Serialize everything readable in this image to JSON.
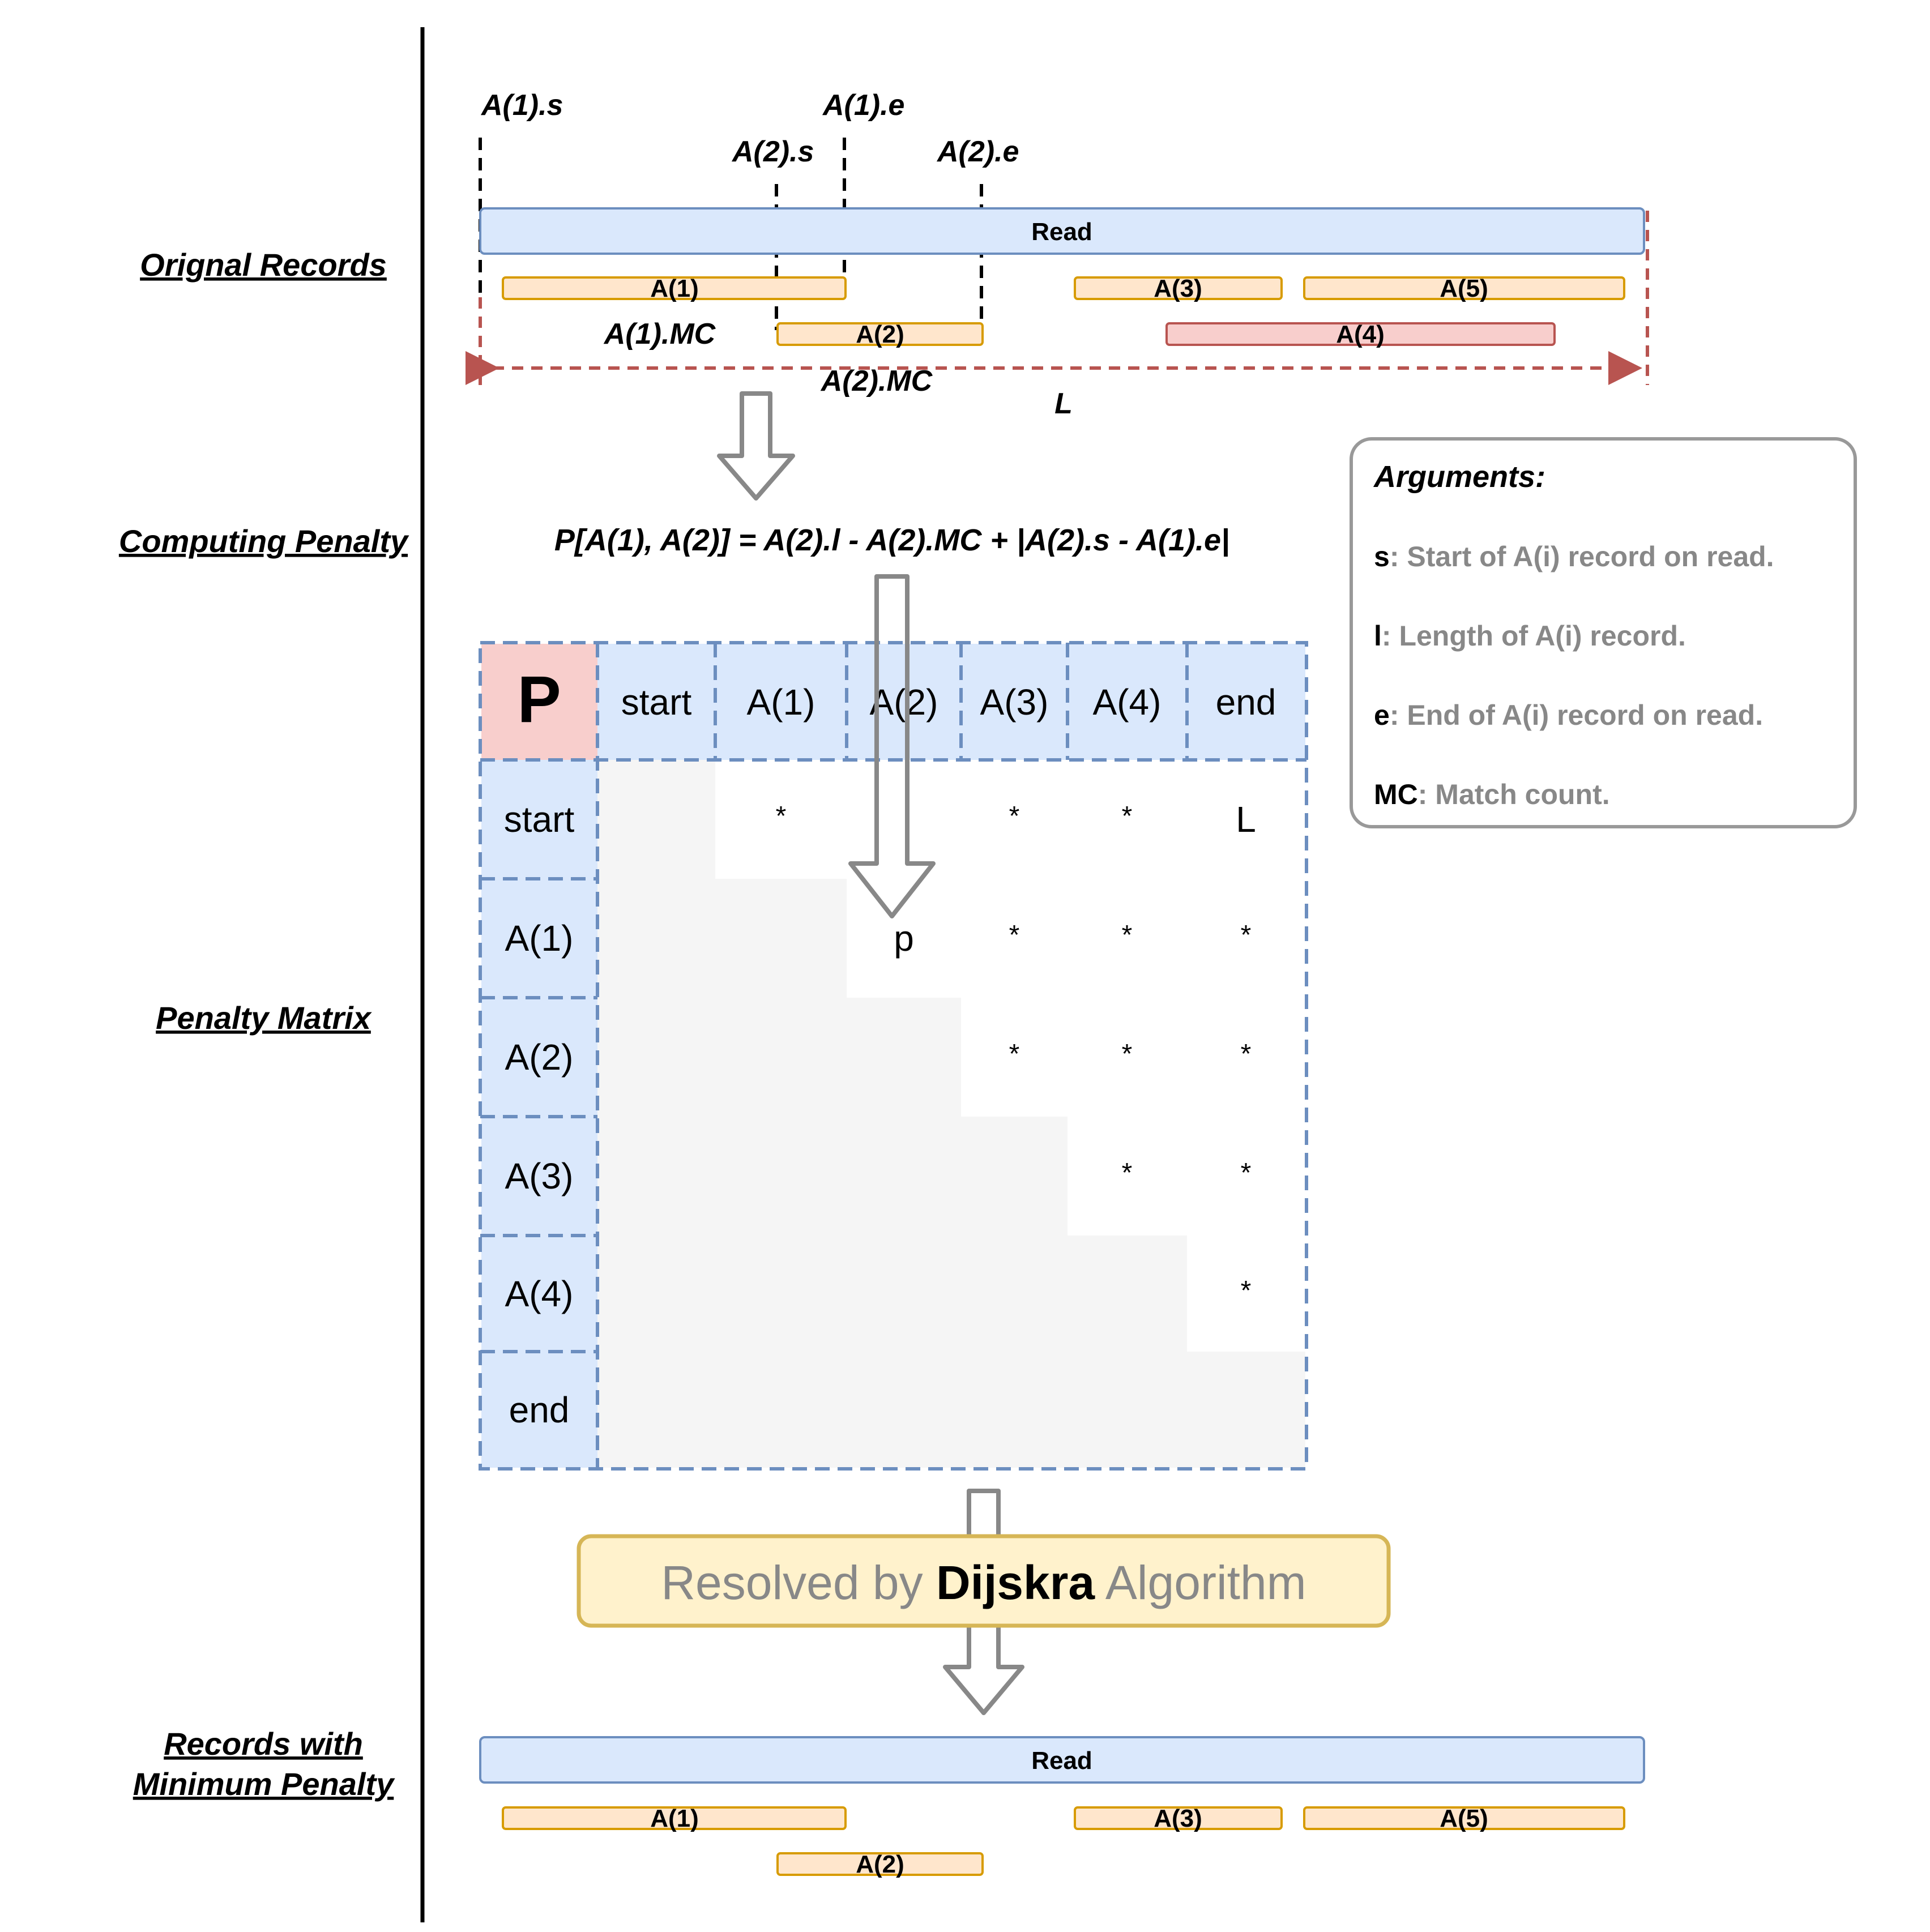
{
  "sections": {
    "original": "Orignal Records",
    "computing": "Computing Penalty",
    "matrix": "Penalty Matrix",
    "result_line1": "Records with",
    "result_line2": "Minimum Penalty"
  },
  "markers": {
    "a1_s": "A(1).s",
    "a1_e": "A(1).e",
    "a2_s": "A(2).s",
    "a2_e": "A(2).e",
    "a1_mc": "A(1).MC",
    "a2_mc": "A(2).MC",
    "length": "L"
  },
  "read_label": "Read",
  "records": {
    "a1": "A(1)",
    "a2": "A(2)",
    "a3": "A(3)",
    "a4": "A(4)",
    "a5": "A(5)"
  },
  "formula": "P[A(1), A(2)] = A(2).l - A(2).MC + |A(2).s - A(1).e|",
  "matrix": {
    "corner": "P",
    "col_headers": [
      "start",
      "A(1)",
      "A(2)",
      "A(3)",
      "A(4)",
      "end"
    ],
    "row_headers": [
      "start",
      "A(1)",
      "A(2)",
      "A(3)",
      "A(4)",
      "end"
    ],
    "cells": [
      [
        "",
        "*",
        "",
        "*",
        "*",
        "L"
      ],
      [
        "",
        "",
        "p",
        "*",
        "*",
        "*"
      ],
      [
        "",
        "",
        "",
        "*",
        "*",
        "*"
      ],
      [
        "",
        "",
        "",
        "",
        "*",
        "*"
      ],
      [
        "",
        "",
        "",
        "",
        "",
        "*"
      ],
      [
        "",
        "",
        "",
        "",
        "",
        ""
      ]
    ]
  },
  "arguments": {
    "title": "Arguments:",
    "items": [
      {
        "key": "s",
        "desc": ": Start of A(i) record on read."
      },
      {
        "key": "l",
        "desc": ": Length of A(i) record."
      },
      {
        "key": "e",
        "desc": ": End of A(i) record on read."
      },
      {
        "key": "MC",
        "desc": ": Match count."
      }
    ]
  },
  "resolver": {
    "prefix": "Resolved by ",
    "bold": "Dijskra",
    "suffix": " Algorithm"
  },
  "colors": {
    "read_fill": "#dae8fc",
    "read_stroke": "#6c8ebf",
    "record_fill": "#ffe6cc",
    "record_stroke": "#d79b00",
    "a4_fill": "#f8cecc",
    "a4_stroke": "#b85450",
    "resolver_fill": "#fff2cc",
    "resolver_stroke": "#d6b656",
    "lower_triangle": "#f5f5f5"
  }
}
